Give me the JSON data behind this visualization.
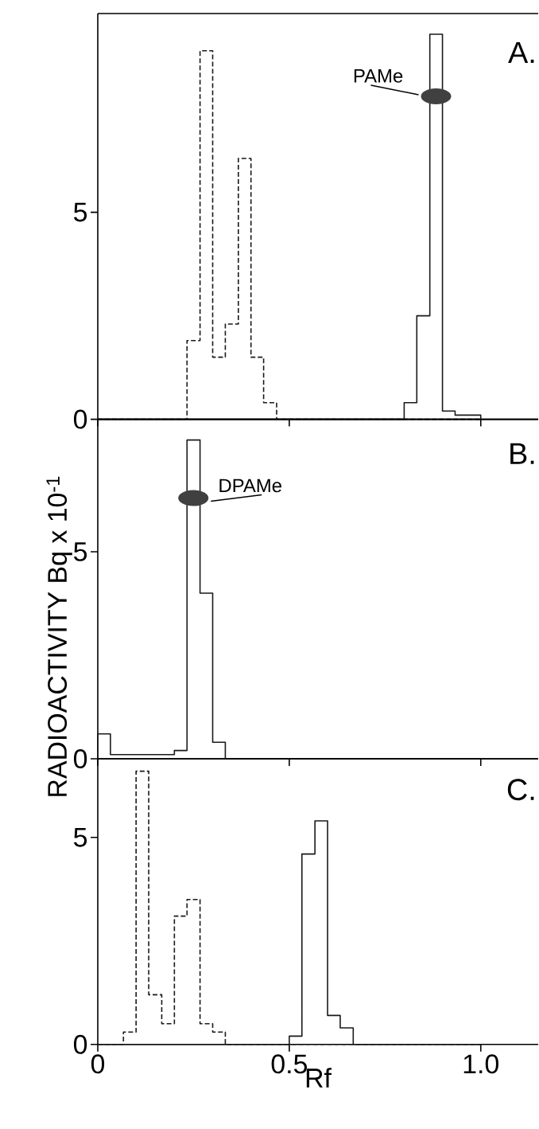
{
  "chart_data": [
    {
      "type": "histogram",
      "xlim": [
        0,
        1.15
      ],
      "ylim": [
        0,
        9.8
      ],
      "yticks": [
        0,
        5
      ],
      "tick_labels": "y",
      "annotations": [
        "A.",
        "PAMe"
      ],
      "bins": [
        0,
        0.033,
        0.067,
        0.1,
        0.133,
        0.167,
        0.2,
        0.233,
        0.267,
        0.3,
        0.333,
        0.367,
        0.4,
        0.433,
        0.467,
        0.5,
        0.533,
        0.567,
        0.6,
        0.633,
        0.667,
        0.7,
        0.733,
        0.767,
        0.8,
        0.833,
        0.867,
        0.9,
        0.933,
        0.967,
        1.0
      ],
      "series": [
        {
          "line_style": "dashed",
          "color": "#1a1a1a",
          "values": [
            0,
            0,
            0,
            0,
            0,
            0,
            0,
            1.9,
            8.9,
            1.5,
            2.3,
            6.3,
            1.5,
            0.4,
            0,
            0,
            0,
            0,
            0,
            0,
            0,
            0,
            0,
            0,
            0,
            0,
            0,
            0,
            0,
            0
          ]
        },
        {
          "line_style": "solid",
          "color": "#1a1a1a",
          "values": [
            0,
            0,
            0,
            0,
            0,
            0,
            0,
            0,
            0,
            0,
            0,
            0,
            0,
            0,
            0,
            0,
            0,
            0,
            0,
            0,
            0,
            0,
            0,
            0,
            0.4,
            2.5,
            9.3,
            0.2,
            0.1,
            0.1
          ]
        }
      ]
    },
    {
      "type": "histogram",
      "xlim": [
        0,
        1.15
      ],
      "ylim": [
        0,
        8.2
      ],
      "yticks": [
        0,
        5
      ],
      "tick_labels": "y",
      "ylabel": "RADIOACTIVITY  Bq x 10$^{-1}$",
      "annotations": [
        "B.",
        "DPAMe"
      ],
      "bins": [
        0,
        0.033,
        0.067,
        0.1,
        0.133,
        0.167,
        0.2,
        0.233,
        0.267,
        0.3,
        0.333,
        0.367,
        0.4,
        0.433,
        0.467,
        0.5,
        0.533,
        0.567,
        0.6,
        0.633,
        0.667,
        0.7,
        0.733,
        0.767,
        0.8,
        0.833,
        0.867,
        0.9,
        0.933,
        0.967,
        1.0
      ],
      "series": [
        {
          "line_style": "solid",
          "color": "#1a1a1a",
          "values": [
            0.6,
            0.1,
            0.1,
            0.1,
            0.1,
            0.1,
            0.2,
            7.7,
            4.0,
            0.4,
            0,
            0,
            0,
            0,
            0,
            0,
            0,
            0,
            0,
            0,
            0,
            0,
            0,
            0,
            0,
            0,
            0,
            0,
            0,
            0
          ]
        }
      ]
    },
    {
      "type": "histogram",
      "xlim": [
        0,
        1.15
      ],
      "ylim": [
        0,
        6.9
      ],
      "xticks": [
        0,
        0.5,
        {
          "value": 1.0,
          "label": "1.0"
        }
      ],
      "yticks": [
        0,
        5
      ],
      "xlabel": "Rf",
      "annotations": [
        "C."
      ],
      "bins": [
        0,
        0.033,
        0.067,
        0.1,
        0.133,
        0.167,
        0.2,
        0.233,
        0.267,
        0.3,
        0.333,
        0.367,
        0.4,
        0.433,
        0.467,
        0.5,
        0.533,
        0.567,
        0.6,
        0.633,
        0.667,
        0.7,
        0.733,
        0.767,
        0.8,
        0.833,
        0.867,
        0.9,
        0.933,
        0.967,
        1.0
      ],
      "series": [
        {
          "line_style": "dashed",
          "color": "#1a1a1a",
          "values": [
            0,
            0,
            0.3,
            6.6,
            1.2,
            0.5,
            3.1,
            3.5,
            0.5,
            0.3,
            0,
            0,
            0,
            0,
            0,
            0,
            0,
            0,
            0,
            0,
            0,
            0,
            0,
            0,
            0,
            0,
            0,
            0,
            0,
            0
          ]
        },
        {
          "line_style": "solid",
          "color": "#1a1a1a",
          "values": [
            0,
            0,
            0,
            0,
            0,
            0,
            0,
            0,
            0,
            0,
            0,
            0,
            0,
            0,
            0,
            0.2,
            4.6,
            5.4,
            0.7,
            0.4,
            0,
            0,
            0,
            0,
            0,
            0,
            0,
            0,
            0,
            0
          ]
        }
      ]
    }
  ]
}
